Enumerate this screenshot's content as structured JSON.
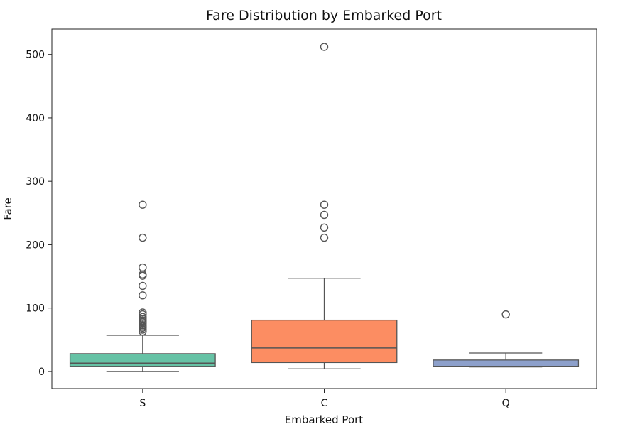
{
  "chart_data": {
    "type": "box",
    "title": "Fare Distribution by Embarked Port",
    "xlabel": "Embarked Port",
    "ylabel": "Fare",
    "ylim": [
      -27,
      540
    ],
    "yticks": [
      0,
      100,
      200,
      300,
      400,
      500
    ],
    "grid": false,
    "categories": [
      "S",
      "C",
      "Q"
    ],
    "colors": [
      "#66c2a5",
      "#fc8d62",
      "#8da0cb"
    ],
    "series": [
      {
        "category": "S",
        "whisker_low": 0,
        "q1": 8,
        "median": 13,
        "q3": 28,
        "whisker_high": 57,
        "outliers": [
          263,
          211,
          164,
          153,
          151,
          135,
          120,
          93,
          90,
          86,
          83,
          80,
          78,
          76,
          73,
          71,
          69,
          66,
          63
        ]
      },
      {
        "category": "C",
        "whisker_low": 4,
        "q1": 14,
        "median": 37,
        "q3": 81,
        "whisker_high": 147,
        "outliers": [
          512,
          263,
          247,
          227,
          211
        ]
      },
      {
        "category": "Q",
        "whisker_low": 7,
        "q1": 8,
        "median": 8,
        "q3": 18,
        "whisker_high": 29,
        "outliers": [
          90
        ]
      }
    ]
  }
}
